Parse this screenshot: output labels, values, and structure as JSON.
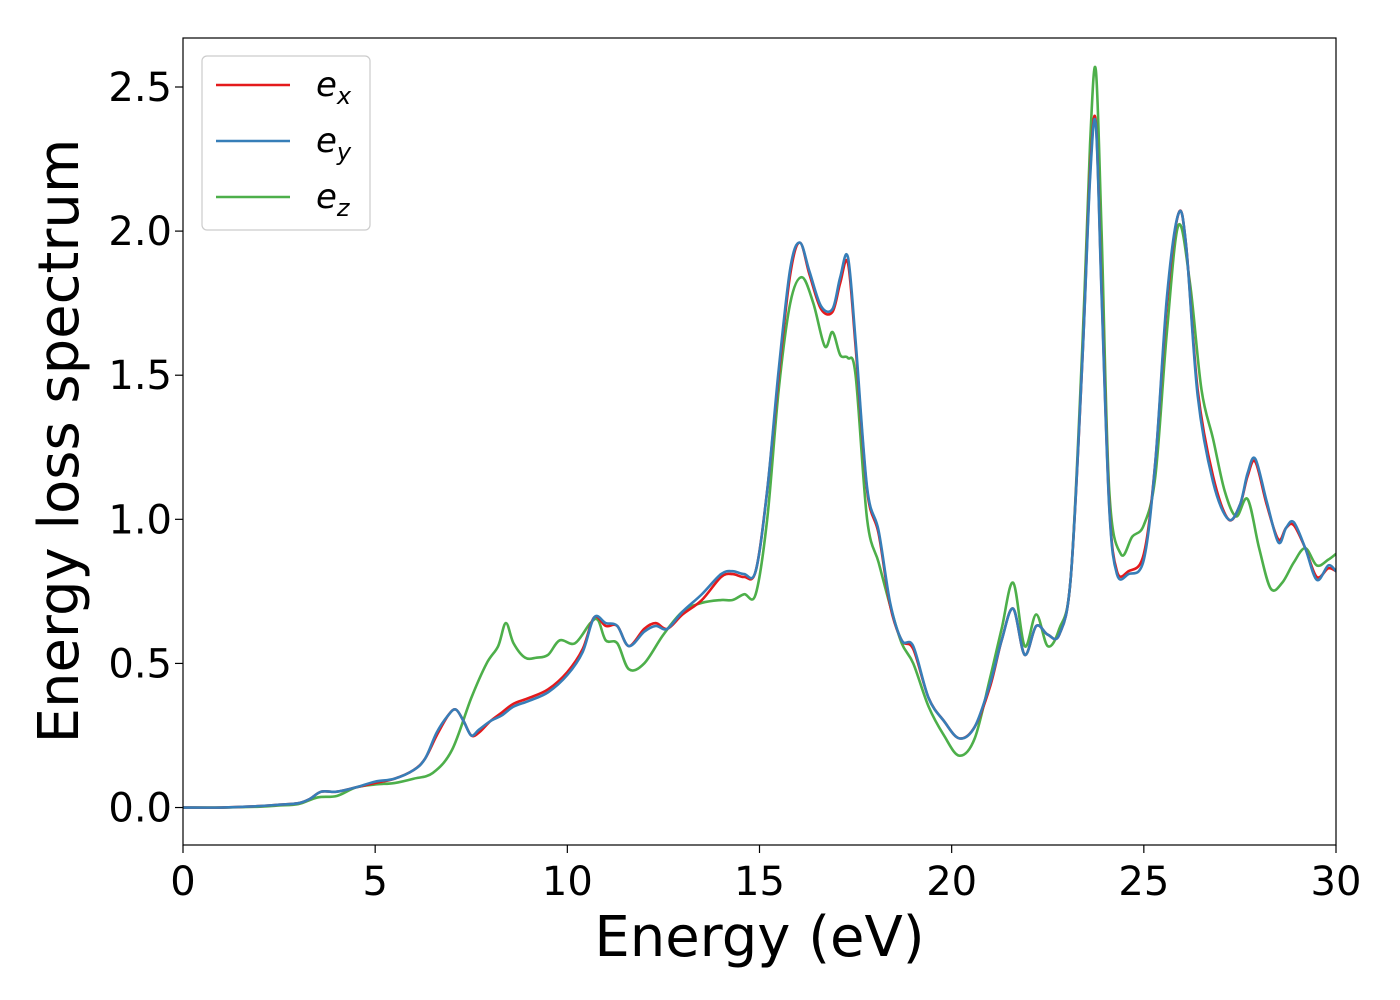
{
  "chart_data": {
    "type": "line",
    "title": "",
    "xlabel": "Energy (eV)",
    "ylabel": "Energy loss spectrum",
    "xlim": [
      0,
      30
    ],
    "ylim": [
      -0.13,
      2.67
    ],
    "xticks": [
      0,
      5,
      10,
      15,
      20,
      25,
      30
    ],
    "yticks": [
      0.0,
      0.5,
      1.0,
      1.5,
      2.0,
      2.5
    ],
    "xtick_labels": [
      "0",
      "5",
      "10",
      "15",
      "20",
      "25",
      "30"
    ],
    "ytick_labels": [
      "0.0",
      "0.5",
      "1.0",
      "1.5",
      "2.0",
      "2.5"
    ],
    "grid": false,
    "legend": "top-left",
    "series": [
      {
        "name": "e",
        "subscript": "x",
        "color": "#e41a1c",
        "x": [
          0,
          1,
          2,
          2.5,
          3,
          3.3,
          3.6,
          4,
          4.5,
          5,
          5.5,
          6,
          6.3,
          6.6,
          6.9,
          7.1,
          7.3,
          7.5,
          7.7,
          8,
          8.3,
          8.6,
          9,
          9.5,
          10,
          10.4,
          10.7,
          11,
          11.3,
          11.6,
          12,
          12.3,
          12.6,
          13,
          13.5,
          14,
          14.3,
          14.6,
          14.9,
          15.2,
          15.5,
          15.8,
          16.05,
          16.3,
          16.6,
          16.9,
          17.1,
          17.3,
          17.5,
          17.8,
          18.1,
          18.4,
          18.7,
          19,
          19.4,
          19.8,
          20.2,
          20.6,
          21,
          21.3,
          21.6,
          21.9,
          22.2,
          22.5,
          22.8,
          23.1,
          23.4,
          23.6,
          23.75,
          23.9,
          24.1,
          24.3,
          24.6,
          25,
          25.3,
          25.6,
          25.9,
          26.1,
          26.4,
          26.8,
          27.2,
          27.5,
          27.7,
          27.9,
          28.2,
          28.5,
          28.7,
          28.9,
          29.2,
          29.5,
          29.8,
          30
        ],
        "y": [
          0,
          0,
          0.005,
          0.01,
          0.015,
          0.03,
          0.055,
          0.055,
          0.07,
          0.085,
          0.1,
          0.13,
          0.17,
          0.25,
          0.32,
          0.34,
          0.3,
          0.25,
          0.26,
          0.3,
          0.33,
          0.36,
          0.38,
          0.41,
          0.47,
          0.55,
          0.66,
          0.63,
          0.63,
          0.56,
          0.62,
          0.64,
          0.62,
          0.67,
          0.72,
          0.8,
          0.81,
          0.8,
          0.82,
          1.1,
          1.5,
          1.85,
          1.96,
          1.85,
          1.73,
          1.72,
          1.82,
          1.89,
          1.6,
          1.1,
          0.95,
          0.7,
          0.58,
          0.55,
          0.38,
          0.3,
          0.24,
          0.28,
          0.42,
          0.58,
          0.69,
          0.53,
          0.63,
          0.6,
          0.6,
          0.8,
          1.55,
          2.2,
          2.38,
          1.8,
          1.05,
          0.82,
          0.82,
          0.88,
          1.2,
          1.75,
          2.06,
          1.95,
          1.45,
          1.15,
          1.0,
          1.05,
          1.15,
          1.2,
          1.05,
          0.93,
          0.97,
          0.98,
          0.9,
          0.8,
          0.83,
          0.82
        ]
      },
      {
        "name": "e",
        "subscript": "y",
        "color": "#377eb8",
        "x": [
          0,
          1,
          2,
          2.5,
          3,
          3.3,
          3.6,
          4,
          4.5,
          5,
          5.5,
          6,
          6.3,
          6.6,
          6.9,
          7.1,
          7.3,
          7.5,
          7.7,
          8,
          8.3,
          8.6,
          9,
          9.5,
          10,
          10.4,
          10.7,
          11,
          11.3,
          11.6,
          12,
          12.3,
          12.6,
          13,
          13.5,
          14,
          14.3,
          14.6,
          14.9,
          15.2,
          15.5,
          15.8,
          16.05,
          16.3,
          16.6,
          16.9,
          17.1,
          17.3,
          17.5,
          17.8,
          18.1,
          18.4,
          18.7,
          19,
          19.4,
          19.8,
          20.2,
          20.6,
          21,
          21.3,
          21.6,
          21.9,
          22.2,
          22.5,
          22.8,
          23.1,
          23.4,
          23.6,
          23.75,
          23.9,
          24.1,
          24.3,
          24.6,
          25,
          25.3,
          25.6,
          25.9,
          26.1,
          26.4,
          26.8,
          27.2,
          27.5,
          27.7,
          27.9,
          28.2,
          28.5,
          28.7,
          28.9,
          29.2,
          29.5,
          29.8,
          30
        ],
        "y": [
          0,
          0,
          0.005,
          0.01,
          0.015,
          0.03,
          0.055,
          0.055,
          0.07,
          0.09,
          0.1,
          0.13,
          0.17,
          0.26,
          0.32,
          0.34,
          0.3,
          0.25,
          0.27,
          0.3,
          0.32,
          0.35,
          0.37,
          0.4,
          0.46,
          0.54,
          0.66,
          0.64,
          0.63,
          0.56,
          0.61,
          0.63,
          0.62,
          0.68,
          0.74,
          0.81,
          0.82,
          0.81,
          0.82,
          1.1,
          1.52,
          1.87,
          1.96,
          1.86,
          1.74,
          1.73,
          1.84,
          1.91,
          1.62,
          1.11,
          0.96,
          0.71,
          0.58,
          0.56,
          0.38,
          0.3,
          0.24,
          0.28,
          0.43,
          0.58,
          0.69,
          0.53,
          0.63,
          0.6,
          0.6,
          0.8,
          1.55,
          2.18,
          2.37,
          1.78,
          1.04,
          0.81,
          0.81,
          0.86,
          1.2,
          1.77,
          2.06,
          1.95,
          1.43,
          1.13,
          1.0,
          1.05,
          1.16,
          1.21,
          1.06,
          0.92,
          0.97,
          0.99,
          0.9,
          0.79,
          0.84,
          0.82
        ]
      },
      {
        "name": "e",
        "subscript": "z",
        "color": "#4daf4a",
        "x": [
          0,
          1,
          2,
          2.5,
          3,
          3.5,
          4,
          4.5,
          5,
          5.5,
          6,
          6.5,
          7,
          7.5,
          7.9,
          8.2,
          8.4,
          8.6,
          8.9,
          9.2,
          9.5,
          9.8,
          10.2,
          10.6,
          10.8,
          11,
          11.3,
          11.6,
          12,
          12.5,
          13,
          13.5,
          14,
          14.3,
          14.6,
          14.9,
          15.2,
          15.5,
          15.8,
          16.1,
          16.4,
          16.7,
          16.9,
          17.1,
          17.3,
          17.5,
          17.8,
          18.1,
          18.4,
          18.7,
          19,
          19.4,
          19.8,
          20.2,
          20.6,
          21,
          21.3,
          21.6,
          21.9,
          22.2,
          22.5,
          22.8,
          23.1,
          23.4,
          23.6,
          23.75,
          23.9,
          24.1,
          24.4,
          24.7,
          25,
          25.3,
          25.6,
          25.9,
          26.2,
          26.5,
          26.8,
          27.1,
          27.4,
          27.7,
          28,
          28.3,
          28.6,
          28.9,
          29.2,
          29.5,
          29.8,
          30
        ],
        "y": [
          0,
          0,
          0.003,
          0.007,
          0.012,
          0.035,
          0.04,
          0.07,
          0.08,
          0.085,
          0.1,
          0.12,
          0.2,
          0.38,
          0.5,
          0.56,
          0.64,
          0.57,
          0.52,
          0.52,
          0.53,
          0.58,
          0.57,
          0.64,
          0.65,
          0.58,
          0.57,
          0.48,
          0.5,
          0.6,
          0.68,
          0.71,
          0.72,
          0.72,
          0.74,
          0.74,
          1.0,
          1.45,
          1.75,
          1.84,
          1.75,
          1.6,
          1.65,
          1.57,
          1.56,
          1.5,
          1.0,
          0.85,
          0.7,
          0.57,
          0.5,
          0.35,
          0.25,
          0.18,
          0.24,
          0.45,
          0.62,
          0.78,
          0.56,
          0.67,
          0.56,
          0.62,
          0.8,
          1.6,
          2.3,
          2.56,
          2.0,
          1.1,
          0.88,
          0.94,
          0.98,
          1.15,
          1.65,
          2.02,
          1.82,
          1.45,
          1.28,
          1.1,
          1.01,
          1.07,
          0.9,
          0.76,
          0.78,
          0.85,
          0.9,
          0.84,
          0.86,
          0.88
        ]
      }
    ]
  }
}
